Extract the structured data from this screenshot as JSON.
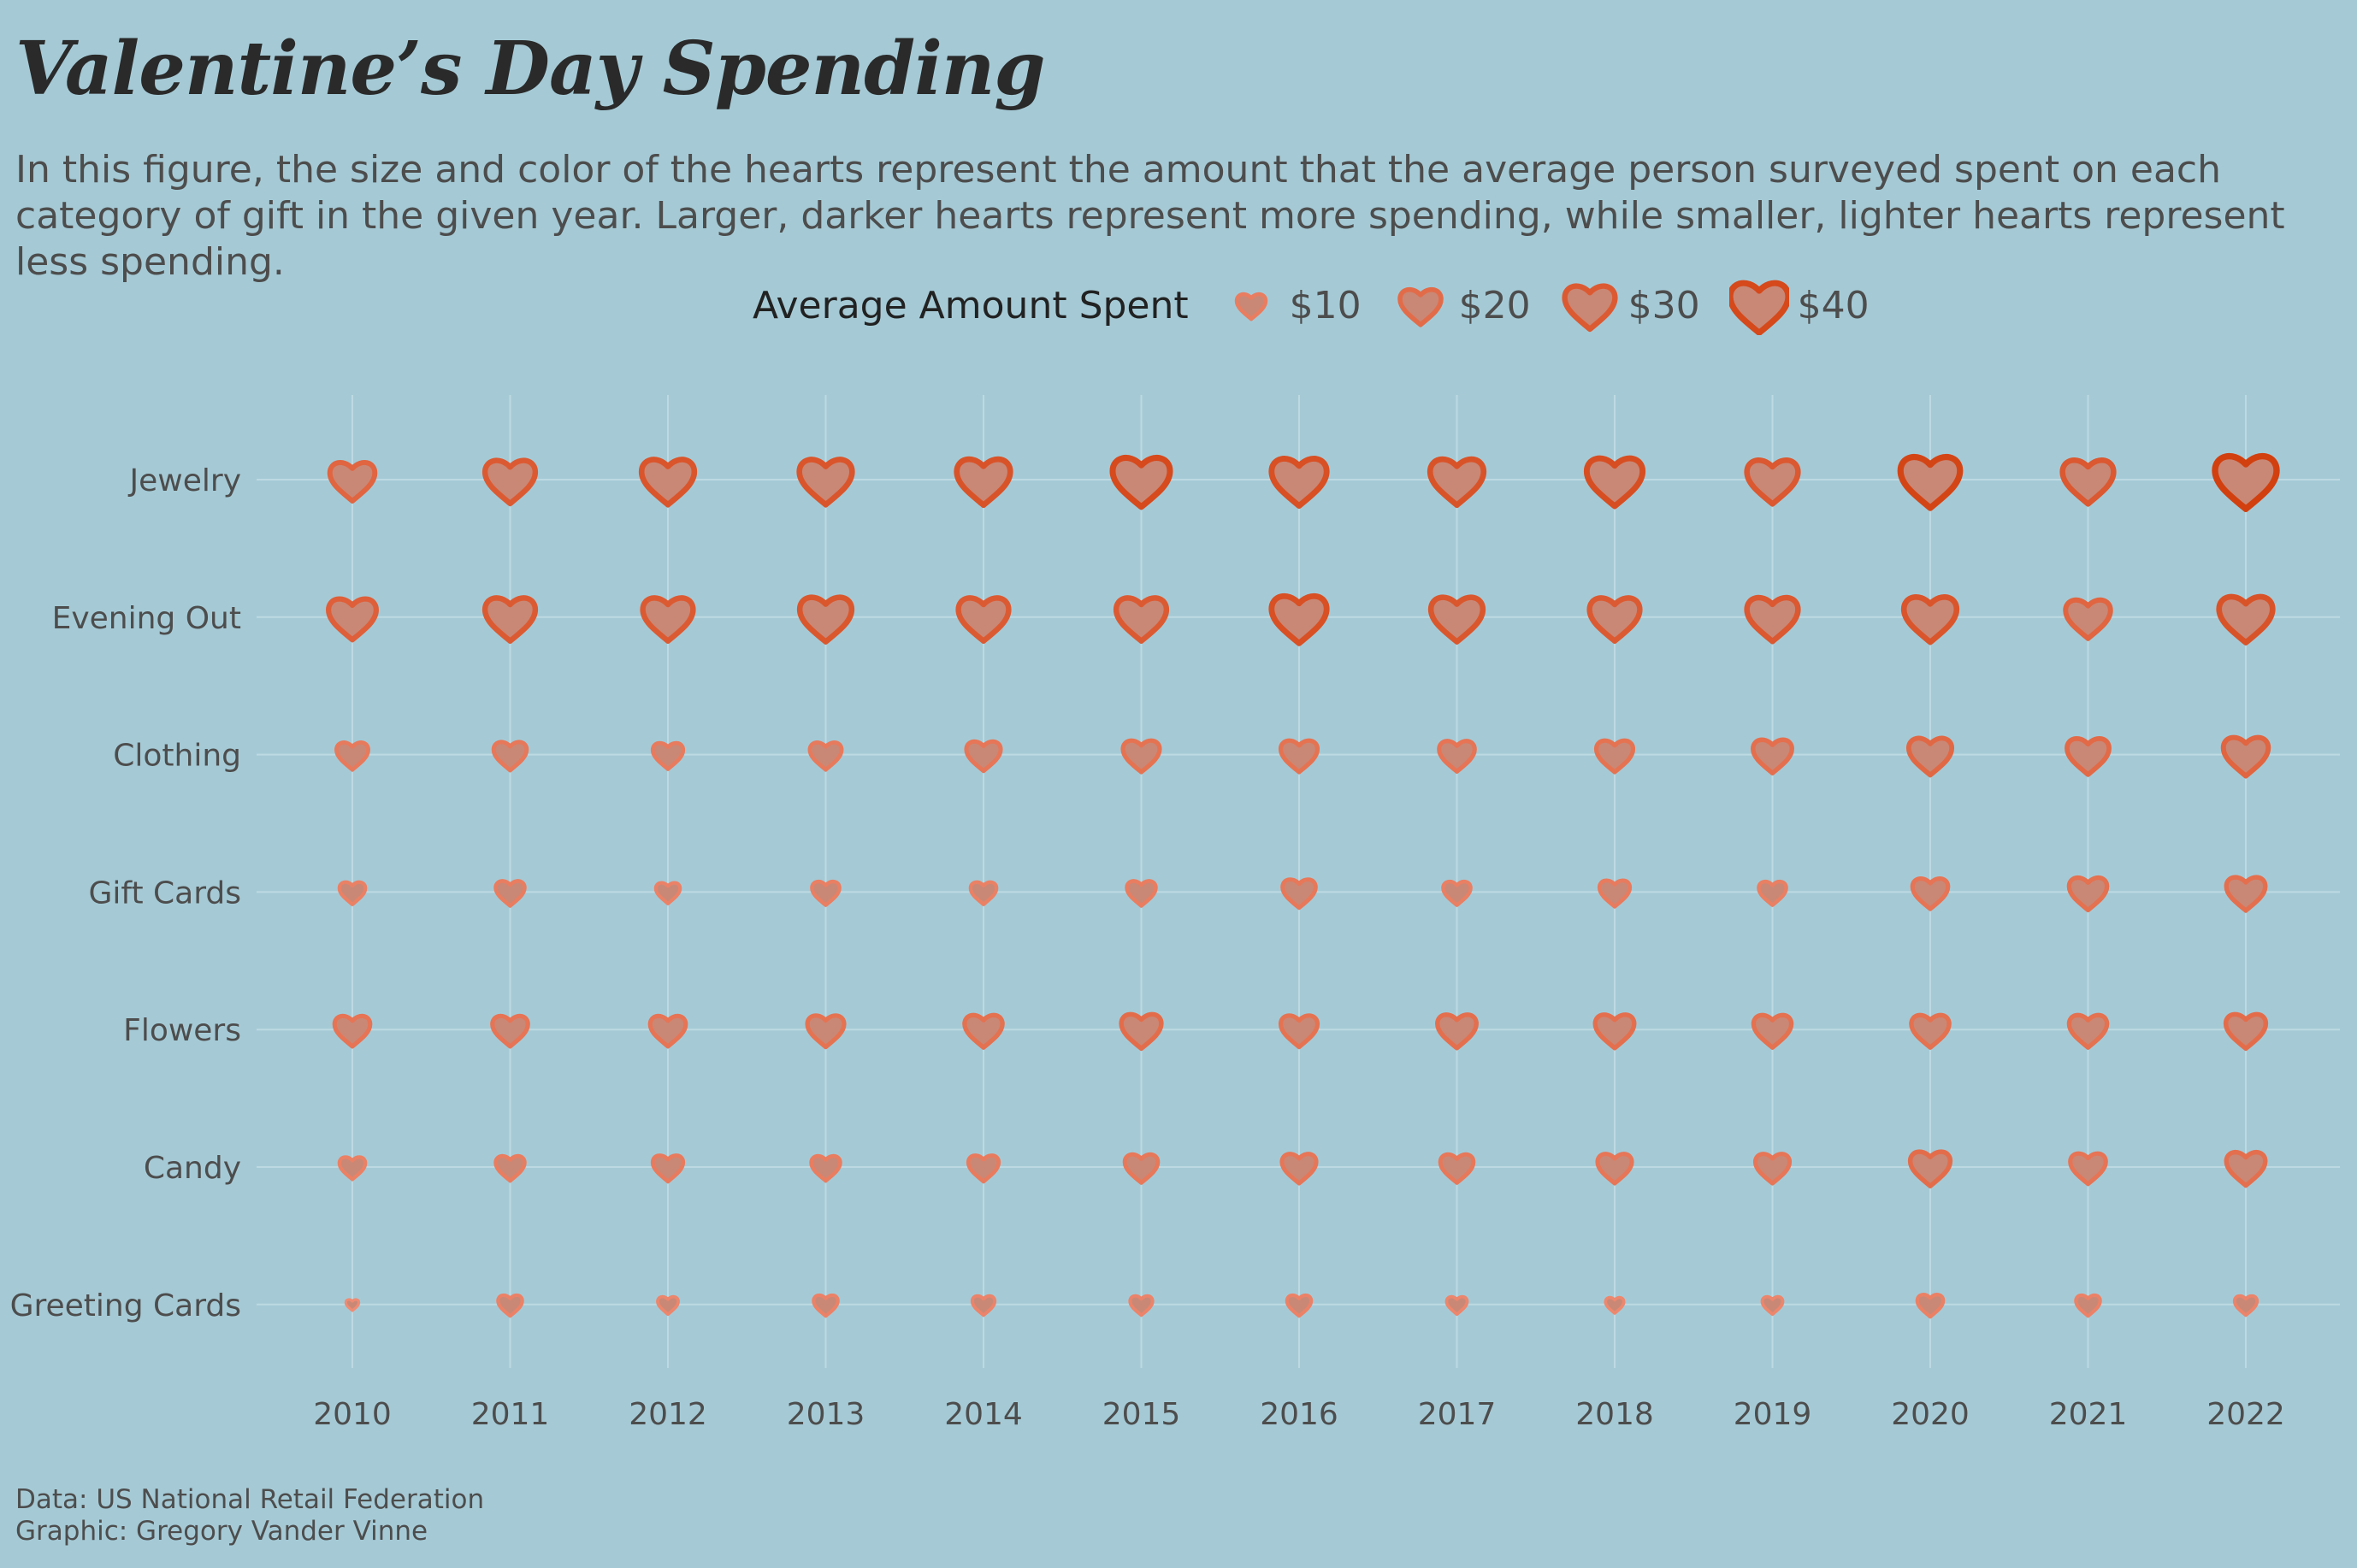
{
  "title": "Valentine’s Day Spending",
  "subtitle": "In this figure, the size and color of the hearts represent the amount that the average person surveyed spent on each category of gift in the given year. Larger, darker hearts represent more spending, while smaller, lighter hearts represent less spending.",
  "caption": {
    "data_line": "Data: US National Retail Federation",
    "graphic_line": "Graphic: Gregory Vander Vinne"
  },
  "colors": {
    "background": "#a5cad6",
    "grid": "#bdd9e2",
    "heart_fill": "#c98876",
    "heart_stroke_low": "#ee8b73",
    "heart_stroke_high": "#d2400f"
  },
  "chart_data": {
    "type": "heatmap",
    "marker": "heart",
    "legend": {
      "title": "Average Amount Spent",
      "placement": "top",
      "entries": [
        {
          "label": "$10",
          "value": 10
        },
        {
          "label": "$20",
          "value": 20
        },
        {
          "label": "$30",
          "value": 30
        },
        {
          "label": "$40",
          "value": 40
        }
      ]
    },
    "size_range": [
      0,
      45
    ],
    "grid": true,
    "x_categories": [
      "2010",
      "2011",
      "2012",
      "2013",
      "2014",
      "2015",
      "2016",
      "2017",
      "2018",
      "2019",
      "2020",
      "2021",
      "2022"
    ],
    "y_categories": [
      "Jewelry",
      "Evening Out",
      "Clothing",
      "Gift Cards",
      "Flowers",
      "Candy",
      "Greeting Cards"
    ],
    "values": {
      "Jewelry": [
        24,
        30,
        33,
        33,
        34,
        39,
        36,
        34,
        37,
        31,
        42,
        31,
        45
      ],
      "Evening Out": [
        27,
        30,
        30,
        32,
        30,
        30,
        36,
        32,
        30,
        31,
        33,
        24,
        34
      ],
      "Clothing": [
        12,
        13,
        11,
        12,
        14,
        16,
        16,
        15,
        16,
        18,
        22,
        21,
        24
      ],
      "Gift Cards": [
        8,
        10,
        7,
        9,
        8,
        10,
        13,
        9,
        11,
        9,
        15,
        17,
        18
      ],
      "Flowers": [
        15,
        15,
        15,
        16,
        17,
        19,
        16,
        18,
        18,
        17,
        17,
        17,
        19
      ],
      "Candy": [
        8,
        10,
        11,
        10,
        11,
        13,
        14,
        13,
        14,
        14,
        19,
        15,
        18
      ],
      "Greeting Cards": [
        2,
        7,
        5,
        7,
        6,
        6,
        7,
        5,
        4,
        5,
        8,
        7,
        6
      ]
    }
  }
}
